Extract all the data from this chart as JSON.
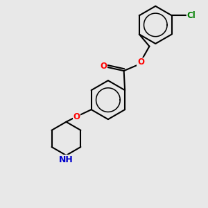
{
  "background_color": "#e8e8e8",
  "bond_color": "#000000",
  "bond_width": 1.5,
  "atom_colors": {
    "O": "#ff0000",
    "N": "#0000cc",
    "Cl": "#008000",
    "C": "#000000"
  },
  "font_size": 8.5,
  "figsize": [
    3.0,
    3.0
  ],
  "dpi": 100,
  "inner_circle_color": "#000000"
}
